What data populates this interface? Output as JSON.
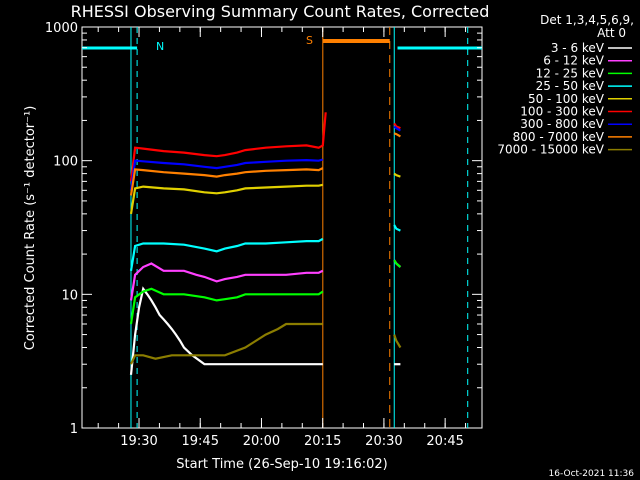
{
  "chart_data": {
    "type": "line",
    "title": "RHESSI Observing Summary Count Rates, Corrected",
    "xlabel": "Start Time (26-Sep-10 19:16:02)",
    "ylabel": "Corrected Count Rate (s⁻¹ detector⁻¹)",
    "yscale": "log",
    "ylim": [
      1,
      1000
    ],
    "xlim_minutes": [
      0,
      98
    ],
    "x_ticks": [
      {
        "label": "19:30",
        "minute": 13.97
      },
      {
        "label": "19:45",
        "minute": 28.97
      },
      {
        "label": "20:00",
        "minute": 43.97
      },
      {
        "label": "20:15",
        "minute": 58.97
      },
      {
        "label": "20:30",
        "minute": 73.97
      },
      {
        "label": "20:45",
        "minute": 88.97
      }
    ],
    "y_ticks": [
      {
        "label": "1",
        "value": 1
      },
      {
        "label": "10",
        "value": 10
      },
      {
        "label": "100",
        "value": 100
      },
      {
        "label": "1000",
        "value": 1000
      }
    ],
    "legend_header": [
      "Det 1,3,4,5,6,9,",
      "Att 0"
    ],
    "series": [
      {
        "name": "3 - 6 keV",
        "color": "#ffffff",
        "x": [
          12,
          13,
          14,
          15,
          16,
          17,
          18,
          19,
          20,
          21,
          22,
          23,
          24,
          25,
          27,
          30,
          35,
          40,
          45,
          50,
          55,
          59,
          76.5,
          77,
          78
        ],
        "y": [
          2.5,
          5,
          8,
          11,
          10,
          9,
          8,
          7,
          6.5,
          6,
          5.5,
          5,
          4.5,
          4,
          3.5,
          3,
          3,
          3,
          3,
          3,
          3,
          3,
          3,
          3,
          3
        ]
      },
      {
        "name": "6 - 12 keV",
        "color": "#ff40ff",
        "x": [
          12,
          13,
          15,
          17,
          20,
          25,
          28,
          30,
          33,
          35,
          38,
          40,
          45,
          50,
          55,
          58,
          59,
          76.5,
          77,
          78
        ],
        "y": [
          9,
          14,
          16,
          17,
          15,
          15,
          14,
          13.5,
          12.5,
          13,
          13.5,
          14,
          14,
          14,
          14.5,
          14.5,
          15,
          18,
          17,
          16
        ]
      },
      {
        "name": "12 - 25 keV",
        "color": "#00ff00",
        "x": [
          12,
          13,
          15,
          17,
          20,
          25,
          30,
          33,
          35,
          38,
          40,
          45,
          50,
          55,
          58,
          59,
          76.5,
          77,
          78
        ],
        "y": [
          6,
          9.5,
          10.5,
          11,
          10,
          10,
          9.5,
          9,
          9.2,
          9.5,
          10,
          10,
          10,
          10,
          10,
          10.5,
          18,
          17,
          16
        ]
      },
      {
        "name": "25 - 50 keV",
        "color": "#00ffff",
        "x": [
          12,
          13,
          15,
          20,
          25,
          30,
          33,
          35,
          38,
          40,
          45,
          50,
          55,
          58,
          59,
          76.5,
          77,
          78
        ],
        "y": [
          15,
          23,
          24,
          24,
          23.5,
          22,
          21,
          22,
          23,
          24,
          24,
          24.5,
          25,
          25,
          26,
          33,
          31,
          30
        ]
      },
      {
        "name": "50 - 100 keV",
        "color": "#e0d000",
        "x": [
          12,
          13,
          15,
          20,
          25,
          30,
          33,
          35,
          38,
          40,
          45,
          50,
          55,
          58,
          59,
          76.5,
          77,
          78
        ],
        "y": [
          40,
          62,
          64,
          62,
          61,
          58,
          57,
          58,
          60,
          62,
          63,
          64,
          65,
          65,
          66,
          80,
          78,
          76
        ]
      },
      {
        "name": "100 - 300 keV",
        "color": "#ff0000",
        "x": [
          12,
          13,
          15,
          20,
          25,
          30,
          33,
          35,
          38,
          40,
          45,
          50,
          55,
          58,
          59,
          59.7,
          76.5,
          77,
          78
        ],
        "y": [
          70,
          125,
          123,
          118,
          115,
          110,
          108,
          110,
          115,
          120,
          125,
          128,
          130,
          125,
          130,
          230,
          190,
          180,
          175
        ]
      },
      {
        "name": "300 - 800 keV",
        "color": "#0000ff",
        "x": [
          12,
          13,
          15,
          20,
          25,
          30,
          33,
          35,
          38,
          40,
          45,
          50,
          55,
          58,
          59,
          76.5,
          77,
          78
        ],
        "y": [
          60,
          100,
          99,
          96,
          94,
          90,
          88,
          90,
          93,
          96,
          98,
          100,
          101,
          100,
          102,
          180,
          175,
          168
        ]
      },
      {
        "name": "800 - 7000 keV",
        "color": "#ff8000",
        "x": [
          12,
          13,
          15,
          20,
          25,
          30,
          33,
          35,
          38,
          40,
          45,
          50,
          55,
          58,
          59,
          76.5,
          77,
          78
        ],
        "y": [
          55,
          86,
          85,
          82,
          80,
          78,
          76,
          78,
          80,
          82,
          84,
          85,
          86,
          85,
          88,
          160,
          158,
          152
        ]
      },
      {
        "name": "7000 - 15000 keV",
        "color": "#8b7d00",
        "x": [
          12,
          13,
          15,
          18,
          22,
          27,
          30,
          35,
          40,
          45,
          48,
          50,
          55,
          59,
          76.5,
          77,
          78
        ],
        "y": [
          3,
          3.5,
          3.5,
          3.3,
          3.5,
          3.5,
          3.5,
          3.5,
          4,
          5,
          5.5,
          6,
          6,
          6,
          5,
          4.5,
          4
        ]
      }
    ],
    "annotations": [
      {
        "label": "N",
        "text_color": "#00ffff"
      },
      {
        "label": "S",
        "text_color": "#ff8000"
      }
    ],
    "night_bars": [
      [
        0,
        13.5
      ],
      [
        77.3,
        98
      ]
    ],
    "saa_bar": [
      59,
      75.4
    ],
    "night_lines": [
      13.5,
      94.5
    ],
    "saa_lines": [
      59,
      75.4
    ],
    "data_gap_lines": [
      12,
      76.5
    ],
    "colors": {
      "background": "#000000",
      "axis": "#ffffff",
      "night": "#00ffff",
      "saa": "#ff8000"
    }
  },
  "timestamp": "16-Oct-2021 11:36"
}
